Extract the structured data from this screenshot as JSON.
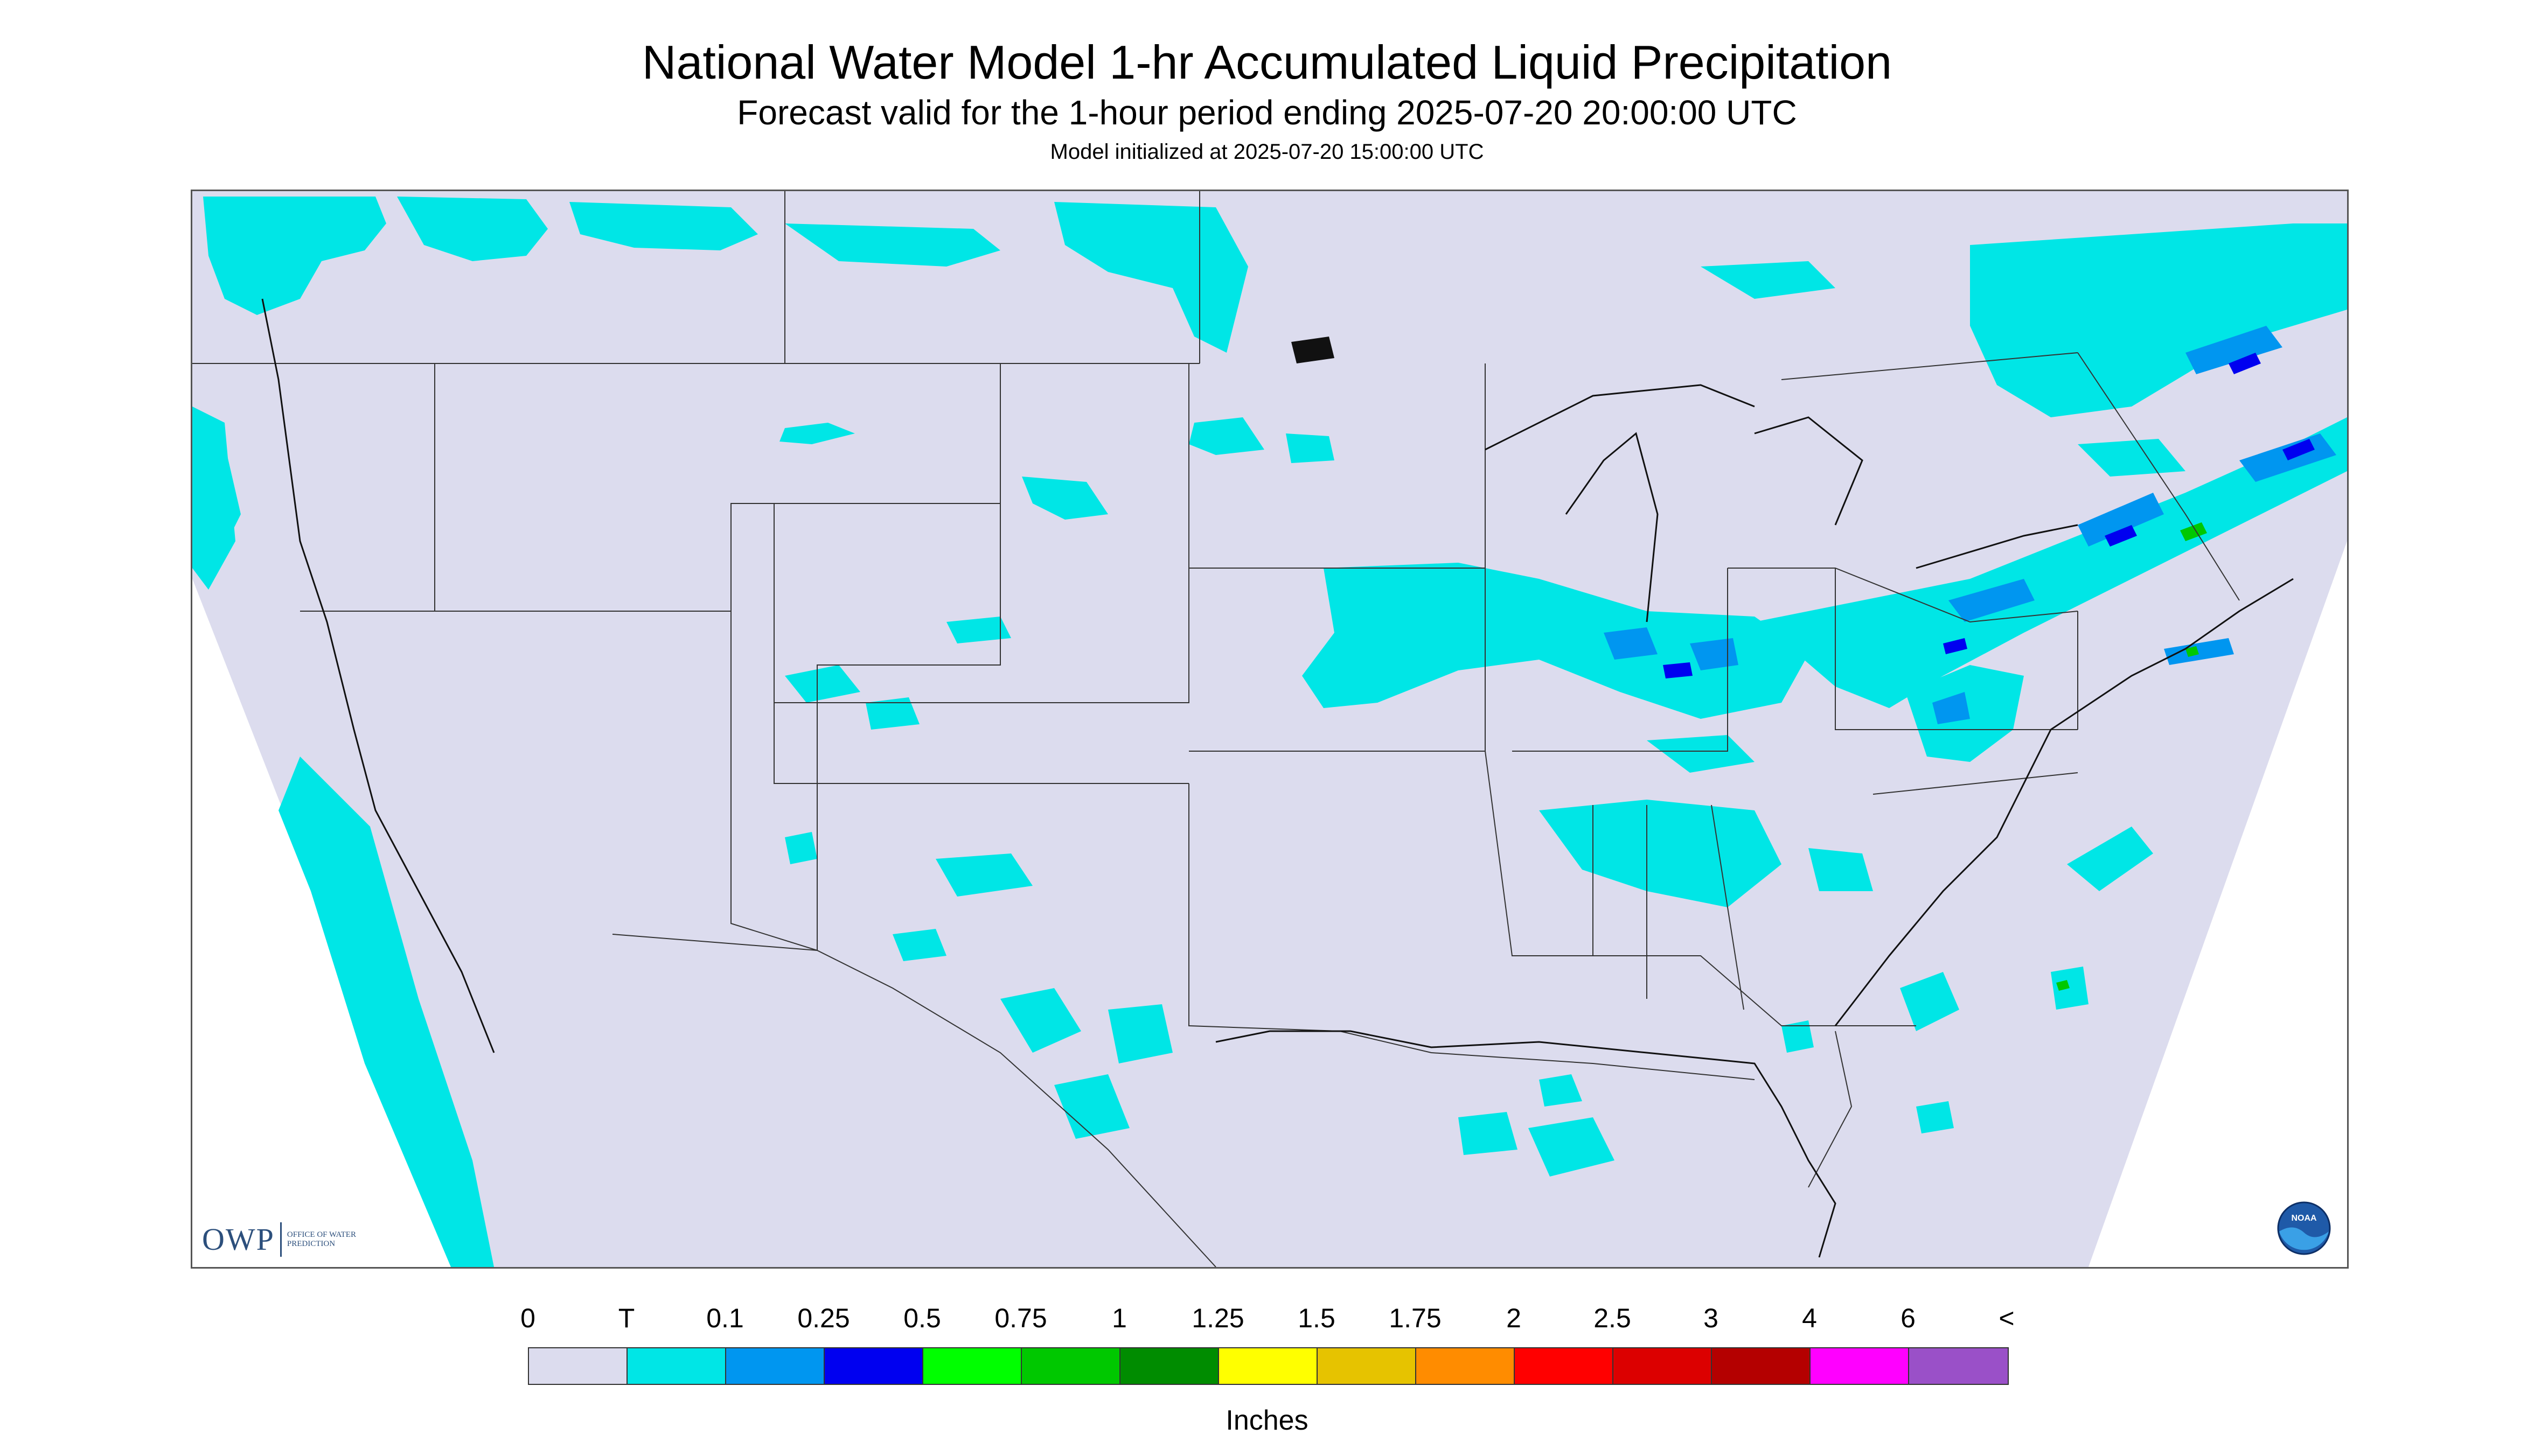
{
  "title": "National Water Model 1-hr Accumulated Liquid Precipitation",
  "subtitle": "Forecast valid for the 1-hour period ending 2025-07-20 20:00:00 UTC",
  "init_line": "Model initialized at 2025-07-20 15:00:00 UTC",
  "logos": {
    "owp_short": "OWP",
    "owp_full": "OFFICE OF WATER PREDICTION",
    "noaa": "NOAA"
  },
  "legend": {
    "labels": [
      "0",
      "T",
      "0.1",
      "0.25",
      "0.5",
      "0.75",
      "1",
      "1.25",
      "1.5",
      "1.75",
      "2",
      "2.5",
      "3",
      "4",
      "6",
      "<"
    ],
    "colors": [
      "#dcdcee",
      "#00e6e6",
      "#0096f0",
      "#0000f0",
      "#00ff00",
      "#00c800",
      "#008c00",
      "#ffff00",
      "#e6c300",
      "#ff8c00",
      "#ff0000",
      "#dc0000",
      "#b40000",
      "#ff00ff",
      "#9a50c8"
    ],
    "units": "Inches"
  },
  "colors": {
    "map_background": "#dcdcee",
    "outside_domain": "#ffffff",
    "trace": "#00e6e6",
    "light": "#0096f0",
    "moderate": "#0000f0",
    "heavy": "#00c800"
  }
}
